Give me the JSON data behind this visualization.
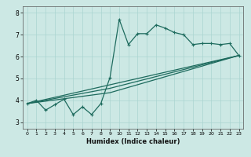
{
  "xlabel": "Humidex (Indice chaleur)",
  "background_color": "#cce8e4",
  "grid_color": "#aad4d0",
  "line_color": "#1e6b5e",
  "xlim": [
    -0.5,
    23.5
  ],
  "ylim": [
    2.7,
    8.3
  ],
  "xticks": [
    0,
    1,
    2,
    3,
    4,
    5,
    6,
    7,
    8,
    9,
    10,
    11,
    12,
    13,
    14,
    15,
    16,
    17,
    18,
    19,
    20,
    21,
    22,
    23
  ],
  "yticks": [
    3,
    4,
    5,
    6,
    7,
    8
  ],
  "curve1_x": [
    0,
    1,
    2,
    3,
    4,
    5,
    6,
    7,
    8,
    9,
    10,
    11,
    12,
    13,
    14,
    15,
    16,
    17,
    18,
    19,
    20,
    21,
    22,
    23
  ],
  "curve1_y": [
    3.85,
    4.0,
    3.55,
    3.8,
    4.05,
    3.35,
    3.7,
    3.35,
    3.85,
    5.05,
    7.7,
    6.55,
    7.05,
    7.05,
    7.45,
    7.3,
    7.1,
    7.0,
    6.55,
    6.6,
    6.6,
    6.55,
    6.6,
    6.05
  ],
  "curve2_x": [
    0,
    23
  ],
  "curve2_y": [
    3.85,
    6.05
  ],
  "curve3_x": [
    0,
    9,
    23
  ],
  "curve3_y": [
    3.85,
    4.55,
    6.05
  ],
  "curve4_x": [
    0,
    9,
    23
  ],
  "curve4_y": [
    3.85,
    4.35,
    6.05
  ],
  "line_width": 0.9,
  "marker_size": 3.0
}
